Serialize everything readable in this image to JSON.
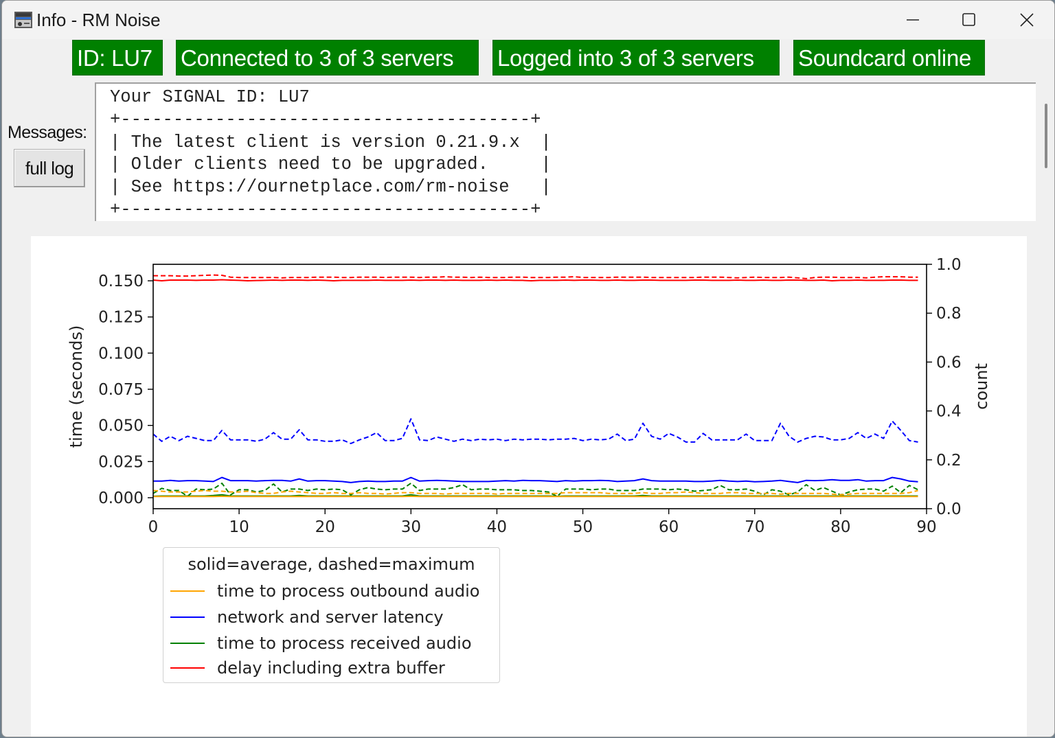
{
  "window": {
    "title": "Info - RM Noise",
    "icon": "app-radio-icon",
    "controls": {
      "minimize": "minimize-icon",
      "maximize": "maximize-icon",
      "close": "close-icon"
    }
  },
  "status": {
    "badges": [
      {
        "label": "ID: LU7",
        "color": "#008000"
      },
      {
        "label": "Connected to 3 of 3 servers",
        "color": "#008000"
      },
      {
        "label": "Logged into 3 of 3 servers",
        "color": "#008000"
      },
      {
        "label": "Soundcard online",
        "color": "#008000"
      }
    ]
  },
  "messages": {
    "label": "Messages:",
    "full_log_button": "full log",
    "lines": [
      "Your SIGNAL ID: LU7",
      "+---------------------------------------+",
      "| The latest client is version 0.21.9.x  |",
      "| Older clients need to be upgraded.     |",
      "| See https://ournetplace.com/rm-noise   |",
      "+---------------------------------------+"
    ]
  },
  "chart_data": {
    "type": "line",
    "title": "",
    "xlabel": "",
    "ylabel": "time (seconds)",
    "y2label": "count",
    "xlim": [
      0,
      90
    ],
    "ylim": [
      -0.0076,
      0.1614
    ],
    "y2lim": [
      0.0,
      1.0
    ],
    "xticks": [
      "0",
      "10",
      "20",
      "30",
      "40",
      "50",
      "60",
      "70",
      "80",
      "90"
    ],
    "yticks": [
      "0.000",
      "0.025",
      "0.050",
      "0.075",
      "0.100",
      "0.125",
      "0.150"
    ],
    "y2ticks": [
      "0.0",
      "0.2",
      "0.4",
      "0.6",
      "0.8",
      "1.0"
    ],
    "grid": false,
    "legend": {
      "title": "solid=average, dashed=maximum",
      "position": "below-left",
      "entries": [
        {
          "label": "time to process outbound audio",
          "color": "#ffa500"
        },
        {
          "label": "network and server latency",
          "color": "#0000ff"
        },
        {
          "label": "time to process received audio",
          "color": "#008000"
        },
        {
          "label": "delay including extra buffer",
          "color": "#ff0000"
        }
      ]
    },
    "x": [
      0,
      1,
      2,
      3,
      4,
      5,
      6,
      7,
      8,
      9,
      10,
      11,
      12,
      13,
      14,
      15,
      16,
      17,
      18,
      19,
      20,
      21,
      22,
      23,
      24,
      25,
      26,
      27,
      28,
      29,
      30,
      31,
      32,
      33,
      34,
      35,
      36,
      37,
      38,
      39,
      40,
      41,
      42,
      43,
      44,
      45,
      46,
      47,
      48,
      49,
      50,
      51,
      52,
      53,
      54,
      55,
      56,
      57,
      58,
      59,
      60,
      61,
      62,
      63,
      64,
      65,
      66,
      67,
      68,
      69,
      70,
      71,
      72,
      73,
      74,
      75,
      76,
      77,
      78,
      79,
      80,
      81,
      82,
      83,
      84,
      85,
      86,
      87,
      88,
      89
    ],
    "series": [
      {
        "name": "delay including extra buffer (average)",
        "color": "#ff0000",
        "style": "solid",
        "values": [
          0.1505,
          0.15,
          0.1505,
          0.1505,
          0.1505,
          0.1503,
          0.1505,
          0.1505,
          0.1507,
          0.1505,
          0.1503,
          0.15,
          0.1502,
          0.1503,
          0.1505,
          0.1503,
          0.1505,
          0.1505,
          0.1503,
          0.1505,
          0.1503,
          0.15,
          0.1503,
          0.1503,
          0.1503,
          0.1503,
          0.1505,
          0.1503,
          0.1503,
          0.1503,
          0.1505,
          0.1503,
          0.1505,
          0.1505,
          0.1503,
          0.1505,
          0.1503,
          0.1503,
          0.1503,
          0.1505,
          0.1503,
          0.1505,
          0.1503,
          0.1503,
          0.15,
          0.1503,
          0.1503,
          0.1503,
          0.1505,
          0.1503,
          0.1505,
          0.1505,
          0.1503,
          0.1503,
          0.1505,
          0.1503,
          0.1503,
          0.1505,
          0.1505,
          0.1503,
          0.1503,
          0.1503,
          0.1503,
          0.1505,
          0.1505,
          0.1503,
          0.1503,
          0.1503,
          0.1505,
          0.1503,
          0.1503,
          0.1505,
          0.1503,
          0.1503,
          0.1505,
          0.1505,
          0.1503,
          0.1503,
          0.1505,
          0.15,
          0.1503,
          0.1503,
          0.1505,
          0.1503,
          0.1503,
          0.1503,
          0.1505,
          0.1505,
          0.1503,
          0.1503
        ]
      },
      {
        "name": "delay including extra buffer (maximum)",
        "color": "#ff0000",
        "style": "dashed",
        "values": [
          0.1535,
          0.1535,
          0.1535,
          0.1533,
          0.1533,
          0.1535,
          0.1538,
          0.154,
          0.1538,
          0.1525,
          0.1523,
          0.1523,
          0.1523,
          0.1523,
          0.1523,
          0.152,
          0.1523,
          0.1523,
          0.1523,
          0.1525,
          0.1525,
          0.1525,
          0.1523,
          0.1523,
          0.1525,
          0.1525,
          0.1525,
          0.1523,
          0.1525,
          0.1525,
          0.1525,
          0.1523,
          0.1525,
          0.1525,
          0.1528,
          0.1525,
          0.1525,
          0.1523,
          0.1525,
          0.1523,
          0.1523,
          0.1523,
          0.1525,
          0.1525,
          0.1523,
          0.1523,
          0.1523,
          0.1525,
          0.1525,
          0.1528,
          0.1523,
          0.1523,
          0.1523,
          0.1523,
          0.1525,
          0.1525,
          0.1525,
          0.1525,
          0.1523,
          0.1523,
          0.1523,
          0.1523,
          0.1523,
          0.1523,
          0.1525,
          0.1525,
          0.1525,
          0.1523,
          0.152,
          0.1523,
          0.1525,
          0.1523,
          0.1523,
          0.1523,
          0.1525,
          0.152,
          0.1515,
          0.1523,
          0.1525,
          0.1525,
          0.1523,
          0.1523,
          0.1523,
          0.152,
          0.1525,
          0.1528,
          0.1528,
          0.1528,
          0.1525,
          0.1525
        ]
      },
      {
        "name": "network and server latency (average)",
        "color": "#0000ff",
        "style": "solid",
        "values": [
          0.0115,
          0.0115,
          0.012,
          0.0115,
          0.0118,
          0.0118,
          0.0115,
          0.0112,
          0.014,
          0.0118,
          0.0118,
          0.0118,
          0.0115,
          0.0118,
          0.012,
          0.012,
          0.0115,
          0.013,
          0.0115,
          0.0118,
          0.0118,
          0.0115,
          0.0112,
          0.0105,
          0.0112,
          0.0115,
          0.0112,
          0.0112,
          0.0115,
          0.0115,
          0.014,
          0.0115,
          0.0118,
          0.012,
          0.0118,
          0.0115,
          0.0112,
          0.0112,
          0.0112,
          0.0112,
          0.0115,
          0.0118,
          0.0115,
          0.012,
          0.0118,
          0.0118,
          0.0115,
          0.0112,
          0.0118,
          0.0115,
          0.0118,
          0.0118,
          0.012,
          0.0118,
          0.0112,
          0.0115,
          0.0118,
          0.013,
          0.0118,
          0.0115,
          0.0115,
          0.0115,
          0.0115,
          0.0112,
          0.0112,
          0.0115,
          0.012,
          0.0115,
          0.0112,
          0.0115,
          0.011,
          0.0112,
          0.0115,
          0.012,
          0.0112,
          0.0105,
          0.012,
          0.0118,
          0.012,
          0.0125,
          0.012,
          0.012,
          0.0125,
          0.0115,
          0.0118,
          0.0118,
          0.014,
          0.013,
          0.0115,
          0.011
        ]
      },
      {
        "name": "network and server latency (maximum)",
        "color": "#0000ff",
        "style": "dashed",
        "values": [
          0.044,
          0.039,
          0.0425,
          0.0395,
          0.0425,
          0.041,
          0.0395,
          0.0395,
          0.0465,
          0.04,
          0.04,
          0.04,
          0.039,
          0.0405,
          0.045,
          0.0405,
          0.0405,
          0.047,
          0.04,
          0.04,
          0.039,
          0.039,
          0.04,
          0.0375,
          0.04,
          0.042,
          0.045,
          0.0395,
          0.0395,
          0.041,
          0.0545,
          0.04,
          0.0395,
          0.042,
          0.0405,
          0.039,
          0.0405,
          0.0395,
          0.0405,
          0.04,
          0.0405,
          0.0395,
          0.0405,
          0.04,
          0.0405,
          0.0405,
          0.04,
          0.0405,
          0.0405,
          0.041,
          0.0395,
          0.0405,
          0.04,
          0.0405,
          0.044,
          0.0395,
          0.0405,
          0.0515,
          0.0425,
          0.0405,
          0.0445,
          0.042,
          0.0385,
          0.0385,
          0.0445,
          0.04,
          0.04,
          0.04,
          0.04,
          0.044,
          0.0395,
          0.0395,
          0.0395,
          0.0515,
          0.0425,
          0.0385,
          0.041,
          0.0425,
          0.042,
          0.04,
          0.04,
          0.041,
          0.045,
          0.041,
          0.044,
          0.041,
          0.053,
          0.0465,
          0.0395,
          0.0385
        ]
      },
      {
        "name": "time to process received audio (average)",
        "color": "#008000",
        "style": "solid",
        "values": [
          0.001,
          0.0012,
          0.0012,
          0.0012,
          0.0012,
          0.0012,
          0.0012,
          0.0015,
          0.002,
          0.0012,
          0.0012,
          0.0012,
          0.0012,
          0.0012,
          0.0012,
          0.0012,
          0.0012,
          0.0015,
          0.0012,
          0.0012,
          0.0012,
          0.0012,
          0.0012,
          0.0012,
          0.0012,
          0.0012,
          0.0012,
          0.0012,
          0.0012,
          0.0012,
          0.002,
          0.0012,
          0.0012,
          0.0012,
          0.0012,
          0.0012,
          0.0012,
          0.0012,
          0.0012,
          0.0012,
          0.0012,
          0.0012,
          0.0012,
          0.0012,
          0.0012,
          0.0012,
          0.0012,
          0.001,
          0.0012,
          0.0012,
          0.0012,
          0.0012,
          0.0012,
          0.0012,
          0.0012,
          0.0012,
          0.0012,
          0.0015,
          0.0012,
          0.0012,
          0.0012,
          0.0012,
          0.0012,
          0.0012,
          0.0012,
          0.0012,
          0.0012,
          0.0012,
          0.0012,
          0.0012,
          0.0012,
          0.0012,
          0.0012,
          0.0012,
          0.0012,
          0.0012,
          0.0012,
          0.0012,
          0.0012,
          0.0012,
          0.0012,
          0.0012,
          0.0012,
          0.0012,
          0.0012,
          0.0012,
          0.0012,
          0.0012,
          0.0012,
          0.0012
        ]
      },
      {
        "name": "time to process received audio (maximum)",
        "color": "#008000",
        "style": "dashed",
        "values": [
          0.003,
          0.0065,
          0.005,
          0.005,
          0.001,
          0.006,
          0.0055,
          0.006,
          0.01,
          0.002,
          0.0055,
          0.0055,
          0.004,
          0.005,
          0.0095,
          0.004,
          0.006,
          0.006,
          0.005,
          0.006,
          0.0055,
          0.006,
          0.0055,
          0.002,
          0.0055,
          0.007,
          0.006,
          0.0055,
          0.006,
          0.006,
          0.01,
          0.005,
          0.006,
          0.006,
          0.006,
          0.007,
          0.009,
          0.0055,
          0.006,
          0.006,
          0.0055,
          0.0055,
          0.0055,
          0.005,
          0.005,
          0.0045,
          0.004,
          0.001,
          0.006,
          0.006,
          0.006,
          0.0055,
          0.006,
          0.006,
          0.005,
          0.005,
          0.005,
          0.006,
          0.006,
          0.006,
          0.0055,
          0.006,
          0.0055,
          0.0045,
          0.005,
          0.0055,
          0.0085,
          0.0055,
          0.0055,
          0.006,
          0.0045,
          0.002,
          0.0055,
          0.0045,
          0.002,
          0.004,
          0.009,
          0.005,
          0.007,
          0.0045,
          0.002,
          0.004,
          0.0055,
          0.006,
          0.006,
          0.0045,
          0.008,
          0.0035,
          0.0085,
          0.0055
        ]
      },
      {
        "name": "time to process outbound audio (average)",
        "color": "#ffa500",
        "style": "solid",
        "values": [
          0.0008,
          0.0008,
          0.0008,
          0.0008,
          0.0008,
          0.0008,
          0.0008,
          0.0008,
          0.001,
          0.0008,
          0.0008,
          0.0008,
          0.0008,
          0.0008,
          0.0008,
          0.0008,
          0.0008,
          0.0008,
          0.0008,
          0.0008,
          0.0008,
          0.0008,
          0.0008,
          0.0008,
          0.0008,
          0.0008,
          0.0008,
          0.0008,
          0.0008,
          0.0008,
          0.001,
          0.0008,
          0.0008,
          0.0008,
          0.0008,
          0.0008,
          0.0008,
          0.0008,
          0.0008,
          0.0008,
          0.0008,
          0.0008,
          0.0008,
          0.0008,
          0.0008,
          0.0008,
          0.0008,
          0.0008,
          0.0008,
          0.0008,
          0.0008,
          0.0008,
          0.0008,
          0.0008,
          0.0008,
          0.0008,
          0.0008,
          0.0008,
          0.0008,
          0.0008,
          0.0008,
          0.0008,
          0.0008,
          0.0008,
          0.0008,
          0.0008,
          0.0008,
          0.0008,
          0.0008,
          0.0008,
          0.0008,
          0.0008,
          0.0008,
          0.0008,
          0.0008,
          0.0008,
          0.0008,
          0.0008,
          0.0008,
          0.0008,
          0.0008,
          0.0008,
          0.0008,
          0.0008,
          0.0008,
          0.0008,
          0.0008,
          0.0008,
          0.0008,
          0.0008
        ]
      },
      {
        "name": "time to process outbound audio (maximum)",
        "color": "#ffa500",
        "style": "dashed",
        "values": [
          0.005,
          0.0045,
          0.004,
          0.004,
          0.004,
          0.0045,
          0.005,
          0.0045,
          0.0045,
          0.004,
          0.004,
          0.0045,
          0.0035,
          0.003,
          0.003,
          0.004,
          0.0045,
          0.004,
          0.0035,
          0.003,
          0.003,
          0.0035,
          0.003,
          0.003,
          0.0035,
          0.003,
          0.003,
          0.0025,
          0.003,
          0.0035,
          0.0035,
          0.003,
          0.003,
          0.003,
          0.0025,
          0.003,
          0.003,
          0.003,
          0.003,
          0.003,
          0.0025,
          0.003,
          0.003,
          0.003,
          0.003,
          0.003,
          0.003,
          0.003,
          0.0035,
          0.0035,
          0.0035,
          0.0035,
          0.0035,
          0.003,
          0.003,
          0.003,
          0.003,
          0.0035,
          0.003,
          0.003,
          0.0035,
          0.0035,
          0.004,
          0.0035,
          0.003,
          0.003,
          0.003,
          0.0035,
          0.0035,
          0.003,
          0.003,
          0.003,
          0.003,
          0.0025,
          0.003,
          0.003,
          0.003,
          0.003,
          0.003,
          0.0025,
          0.002,
          0.0025,
          0.003,
          0.003,
          0.003,
          0.003,
          0.003,
          0.003,
          0.0035,
          0.005
        ]
      }
    ]
  }
}
